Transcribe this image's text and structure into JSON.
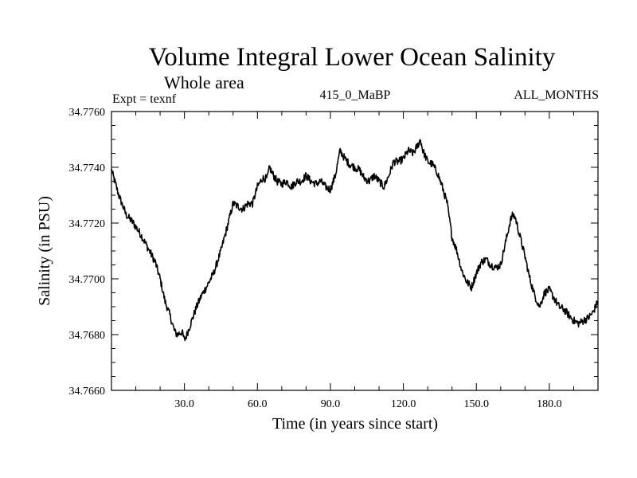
{
  "chart_data": {
    "type": "line",
    "title": "Volume Integral Lower Ocean Salinity",
    "subtitle": "Whole area",
    "header_left": "Expt = texnf",
    "header_center": "415_0_MaBP",
    "header_right": "ALL_MONTHS",
    "xlabel": "Time (in years since start)",
    "ylabel": "Salinity (in PSU)",
    "xlim": [
      0,
      200
    ],
    "ylim": [
      34.766,
      34.776
    ],
    "xticks": [
      30,
      60,
      90,
      120,
      150,
      180
    ],
    "xtick_labels": [
      "30.0",
      "60.0",
      "90.0",
      "120.0",
      "150.0",
      "180.0"
    ],
    "yticks": [
      34.766,
      34.768,
      34.77,
      34.772,
      34.774,
      34.776
    ],
    "ytick_labels": [
      "34.7660",
      "34.7680",
      "34.7700",
      "34.7720",
      "34.7740",
      "34.7760"
    ],
    "grid": false,
    "series": [
      {
        "name": "Volume integral lower ocean salinity",
        "x": [
          0,
          3,
          6,
          9,
          12,
          15,
          18,
          20,
          22,
          24,
          26,
          27,
          29,
          30,
          31,
          33,
          35,
          37,
          39,
          42,
          45,
          48,
          50,
          52,
          54,
          56,
          58,
          60,
          62,
          64,
          65,
          66,
          68,
          70,
          72,
          74,
          76,
          78,
          80,
          82,
          84,
          86,
          88,
          90,
          92,
          94,
          96,
          98,
          100,
          102,
          104,
          106,
          108,
          110,
          112,
          114,
          116,
          118,
          120,
          122,
          124,
          126,
          127,
          128,
          130,
          132,
          134,
          136,
          138,
          140,
          142,
          144,
          146,
          148,
          150,
          152,
          154,
          156,
          158,
          160,
          162,
          164,
          165,
          166,
          168,
          170,
          172,
          174,
          176,
          178,
          180,
          182,
          184,
          186,
          188,
          190,
          192,
          194,
          196,
          198,
          200
        ],
        "values": [
          34.7739,
          34.773,
          34.7723,
          34.772,
          34.7716,
          34.7711,
          34.7706,
          34.77,
          34.7692,
          34.7687,
          34.7681,
          34.768,
          34.7681,
          34.7678,
          34.768,
          34.7685,
          34.769,
          34.7694,
          34.7697,
          34.7702,
          34.771,
          34.772,
          34.7727,
          34.7726,
          34.7725,
          34.7727,
          34.7727,
          34.7733,
          34.7736,
          34.7736,
          34.774,
          34.7738,
          34.7735,
          34.7734,
          34.7735,
          34.7733,
          34.7735,
          34.7735,
          34.7737,
          34.7735,
          34.7734,
          34.7735,
          34.7733,
          34.7732,
          34.7737,
          34.7746,
          34.7743,
          34.7741,
          34.774,
          34.7739,
          34.7736,
          34.7735,
          34.7737,
          34.7735,
          34.7733,
          34.7737,
          34.7742,
          34.7742,
          34.7743,
          34.7746,
          34.7745,
          34.7748,
          34.775,
          34.7746,
          34.7742,
          34.7741,
          34.7738,
          34.7733,
          34.7727,
          34.7715,
          34.771,
          34.7703,
          34.7699,
          34.7697,
          34.7702,
          34.7706,
          34.7707,
          34.7705,
          34.7704,
          34.7705,
          34.7713,
          34.7721,
          34.7723,
          34.7722,
          34.7715,
          34.7708,
          34.77,
          34.7694,
          34.769,
          34.7695,
          34.7696,
          34.7693,
          34.769,
          34.7689,
          34.7687,
          34.7685,
          34.7684,
          34.7685,
          34.7686,
          34.7688,
          34.7692
        ]
      }
    ]
  }
}
